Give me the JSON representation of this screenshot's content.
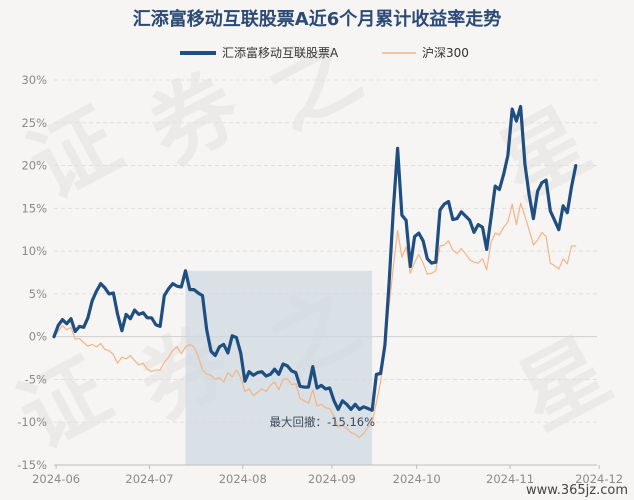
{
  "chart_data": {
    "type": "line",
    "title": "汇添富移动互联股票A近6个月累计收益率走势",
    "legend": {
      "placement": "top-center",
      "entries": [
        "汇添富移动互联股票A",
        "沪深300"
      ]
    },
    "xlabel": "",
    "ylabel": "",
    "ylim": [
      -15,
      30
    ],
    "ytick_labels": [
      "30%",
      "25%",
      "20%",
      "15%",
      "10%",
      "5%",
      "0%",
      "-5%",
      "-10%",
      "-15%"
    ],
    "ytick_values": [
      30,
      25,
      20,
      15,
      10,
      5,
      0,
      -5,
      -10,
      -15
    ],
    "xtick_labels": [
      "2024-06",
      "2024-07",
      "2024-08",
      "2024-09",
      "2024-10",
      "2024-11",
      "2024-12"
    ],
    "xtick_positions": [
      0.5,
      22.5,
      44.5,
      65.5,
      85.5,
      107.5,
      128.5
    ],
    "xlim": [
      0,
      128
    ],
    "grid": "horizontal",
    "series": [
      {
        "name": "汇添富移动互联股票A",
        "color": "#1f4e80",
        "values": [
          0.0,
          1.3,
          2.0,
          1.5,
          2.1,
          0.6,
          1.2,
          1.1,
          2.2,
          4.2,
          5.3,
          6.2,
          5.7,
          5.0,
          5.1,
          2.6,
          0.7,
          2.6,
          2.1,
          3.1,
          2.6,
          2.8,
          2.2,
          2.2,
          1.4,
          1.2,
          4.8,
          5.6,
          6.2,
          5.9,
          5.8,
          7.7,
          5.5,
          5.5,
          5.1,
          4.8,
          0.8,
          -1.7,
          -2.2,
          -1.2,
          -0.9,
          -1.9,
          0.1,
          -0.1,
          -1.9,
          -5.2,
          -4.1,
          -4.5,
          -4.2,
          -4.1,
          -4.6,
          -4.4,
          -3.8,
          -4.4,
          -3.2,
          -3.4,
          -4.0,
          -4.2,
          -5.8,
          -5.9,
          -5.9,
          -3.5,
          -6.0,
          -5.7,
          -6.1,
          -6.0,
          -7.5,
          -8.5,
          -7.5,
          -7.9,
          -8.5,
          -7.9,
          -8.5,
          -8.2,
          -8.4,
          -8.6,
          -4.4,
          -4.3,
          -1.0,
          6.3,
          15.0,
          22.0,
          14.2,
          13.6,
          8.2,
          11.7,
          12.1,
          11.2,
          9.1,
          8.6,
          8.7,
          14.8,
          15.5,
          15.8,
          13.7,
          13.8,
          14.6,
          14.1,
          13.6,
          12.2,
          13.1,
          12.8,
          10.2,
          13.8,
          17.6,
          17.2,
          19.0,
          21.2,
          26.6,
          25.2,
          26.9,
          20.2,
          16.6,
          13.8,
          17.0,
          18.0,
          18.3,
          14.7,
          13.6,
          12.5,
          15.3,
          14.5,
          17.5,
          20.0
        ],
        "final": 20.0
      },
      {
        "name": "沪深300",
        "color": "#f4b485",
        "values": [
          0.0,
          0.6,
          1.3,
          0.8,
          1.1,
          -0.3,
          -0.2,
          -0.7,
          -1.1,
          -0.9,
          -1.2,
          -0.8,
          -1.5,
          -1.6,
          -2.1,
          -3.1,
          -2.4,
          -2.6,
          -2.2,
          -2.8,
          -3.3,
          -3.1,
          -3.8,
          -4.1,
          -3.9,
          -3.9,
          -3.0,
          -2.4,
          -1.6,
          -1.2,
          -2.0,
          -1.2,
          -0.9,
          -1.2,
          -2.3,
          -3.9,
          -4.4,
          -4.5,
          -5.0,
          -4.8,
          -5.3,
          -4.2,
          -4.7,
          -3.9,
          -4.8,
          -6.4,
          -6.1,
          -6.9,
          -6.5,
          -6.1,
          -6.4,
          -5.7,
          -5.3,
          -6.2,
          -5.0,
          -4.9,
          -5.6,
          -5.5,
          -7.2,
          -7.5,
          -7.8,
          -6.2,
          -8.1,
          -7.9,
          -8.3,
          -8.4,
          -9.3,
          -10.6,
          -10.4,
          -10.7,
          -11.2,
          -11.4,
          -11.8,
          -11.3,
          -10.6,
          -10.0,
          -7.7,
          -5.3,
          -1.7,
          3.6,
          8.2,
          12.4,
          9.3,
          10.5,
          7.4,
          8.7,
          9.6,
          8.6,
          7.3,
          7.4,
          7.7,
          10.6,
          10.7,
          11.2,
          10.1,
          9.7,
          10.3,
          9.7,
          9.0,
          8.7,
          8.6,
          9.1,
          7.8,
          11.0,
          12.1,
          11.9,
          12.8,
          13.4,
          15.5,
          13.1,
          15.6,
          14.1,
          12.5,
          10.7,
          11.3,
          12.2,
          11.7,
          8.6,
          8.3,
          7.9,
          9.1,
          8.5,
          10.6,
          10.6
        ],
        "final": 10.6
      }
    ],
    "drawdown": {
      "label": "最大回撤：-15.16%",
      "start_index": 31,
      "end_index": 75,
      "low_value": -10.0
    }
  },
  "watermark": {
    "text": "证券之星",
    "url": "www.365jz.com"
  }
}
